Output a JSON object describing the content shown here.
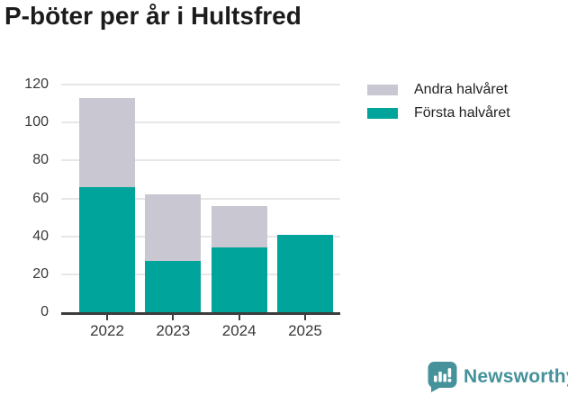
{
  "title": "P-böter per år i Hultsfred",
  "chart_data": {
    "type": "bar",
    "stacked": true,
    "title": "P-böter per år i Hultsfred",
    "categories": [
      "2022",
      "2023",
      "2024",
      "2025"
    ],
    "series": [
      {
        "name": "Första halvåret",
        "color": "#00a49a",
        "values": [
          66,
          27,
          34,
          41
        ]
      },
      {
        "name": "Andra halvåret",
        "color": "#c9c7d1",
        "values": [
          47,
          35,
          22,
          0
        ]
      }
    ],
    "ylim": [
      0,
      120
    ],
    "yticks": [
      0,
      20,
      40,
      60,
      80,
      100,
      120
    ],
    "grid": true,
    "legend_position": "top-right",
    "legend": [
      {
        "label": "Andra halvåret",
        "color": "#c9c7d1"
      },
      {
        "label": "Första halvåret",
        "color": "#00a49a"
      }
    ]
  },
  "branding": {
    "logo_text": "Newsworthy",
    "logo_color": "#45929a",
    "logo_icon": "speech-bubble-bar-chart"
  }
}
